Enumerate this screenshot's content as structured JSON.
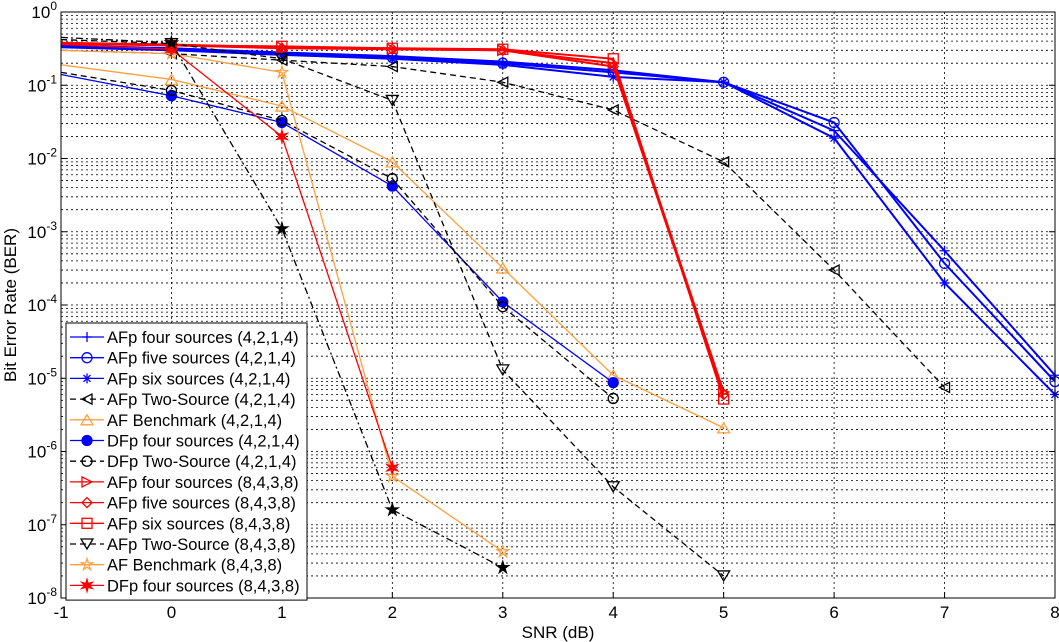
{
  "chart_data": {
    "type": "line",
    "title": "",
    "xlabel": "SNR (dB)",
    "ylabel": "Bit Error Rate (BER)",
    "xlim": [
      -1,
      8
    ],
    "ylim": [
      1e-08,
      1
    ],
    "yscale": "log",
    "grid": true,
    "legend_position": "bottom-left",
    "xticks": [
      "-1",
      "0",
      "1",
      "2",
      "3",
      "4",
      "5",
      "6",
      "7",
      "8"
    ],
    "yticks": [
      {
        "base": "10",
        "exp": "0"
      },
      {
        "base": "10",
        "exp": "-1"
      },
      {
        "base": "10",
        "exp": "-2"
      },
      {
        "base": "10",
        "exp": "-3"
      },
      {
        "base": "10",
        "exp": "-4"
      },
      {
        "base": "10",
        "exp": "-5"
      },
      {
        "base": "10",
        "exp": "-6"
      },
      {
        "base": "10",
        "exp": "-7"
      },
      {
        "base": "10",
        "exp": "-8"
      }
    ],
    "series": [
      {
        "name": "AFp four sources (4,2,1,4)",
        "color": "#0000ff",
        "style": "solid",
        "marker": "plus",
        "x": [
          -1,
          0,
          1,
          2,
          3,
          4,
          5,
          6,
          7,
          8
        ],
        "y": [
          0.35,
          0.32,
          0.28,
          0.25,
          0.21,
          0.16,
          0.11,
          0.024,
          0.00055,
          1.1e-05
        ]
      },
      {
        "name": "AFp five sources (4,2,1,4)",
        "color": "#0000ff",
        "style": "solid",
        "marker": "circle",
        "x": [
          -1,
          0,
          1,
          2,
          3,
          4,
          5,
          6,
          7,
          8
        ],
        "y": [
          0.34,
          0.31,
          0.27,
          0.24,
          0.2,
          0.15,
          0.11,
          0.031,
          0.00037,
          9e-06
        ]
      },
      {
        "name": "AFp six sources (4,2,1,4)",
        "color": "#0000ff",
        "style": "solid",
        "marker": "asterisk",
        "x": [
          -1,
          0,
          1,
          2,
          3,
          4,
          5,
          6,
          7,
          8
        ],
        "y": [
          0.33,
          0.3,
          0.26,
          0.23,
          0.19,
          0.13,
          0.11,
          0.019,
          0.0002,
          6e-06
        ]
      },
      {
        "name": "AFp Two-Source (4,2,1,4)",
        "color": "#000000",
        "style": "dashed",
        "marker": "triangle-left",
        "x": [
          -1,
          0,
          1,
          2,
          3,
          4,
          5,
          6,
          7
        ],
        "y": [
          0.3,
          0.27,
          0.22,
          0.18,
          0.11,
          0.046,
          0.009,
          0.0003,
          7.5e-06
        ]
      },
      {
        "name": "AF Benchmark (4,2,1,4)",
        "color": "#ffa040",
        "style": "solid",
        "marker": "triangle-up",
        "x": [
          -1,
          0,
          1,
          2,
          3,
          4,
          5
        ],
        "y": [
          0.19,
          0.12,
          0.052,
          0.009,
          0.00032,
          1.1e-05,
          2.1e-06
        ]
      },
      {
        "name": "DFp four sources (4,2,1,4)",
        "color": "#0000ff",
        "style": "solid",
        "marker": "filled-circle",
        "x": [
          -1,
          0,
          1,
          2,
          3,
          4
        ],
        "y": [
          0.14,
          0.072,
          0.031,
          0.0042,
          0.00011,
          8.7e-06
        ]
      },
      {
        "name": "DFp Two-Source (4,2,1,4)",
        "color": "#000000",
        "style": "dashed",
        "marker": "circle",
        "x": [
          -1,
          0,
          1,
          2,
          3,
          4
        ],
        "y": [
          0.15,
          0.085,
          0.033,
          0.0053,
          9.5e-05,
          5.3e-06
        ]
      },
      {
        "name": "AFp four sources (8,4,3,8)",
        "color": "#ff0000",
        "style": "solid",
        "marker": "triangle-right",
        "x": [
          -1,
          0,
          1,
          2,
          3,
          4,
          5
        ],
        "y": [
          0.38,
          0.36,
          0.33,
          0.31,
          0.3,
          0.2,
          6.5e-06
        ]
      },
      {
        "name": "AFp five sources (8,4,3,8)",
        "color": "#ff0000",
        "style": "solid",
        "marker": "diamond",
        "x": [
          -1,
          0,
          1,
          2,
          3,
          4,
          5
        ],
        "y": [
          0.37,
          0.35,
          0.32,
          0.31,
          0.3,
          0.18,
          6e-06
        ]
      },
      {
        "name": "AFp six sources (8,4,3,8)",
        "color": "#ff0000",
        "style": "solid",
        "marker": "square",
        "x": [
          -1,
          0,
          1,
          2,
          3,
          4,
          5
        ],
        "y": [
          0.37,
          0.35,
          0.34,
          0.32,
          0.31,
          0.23,
          5.2e-06
        ]
      },
      {
        "name": "AFp Two-Source (8,4,3,8)",
        "color": "#000000",
        "style": "dashed",
        "marker": "triangle-down",
        "x": [
          -1,
          0,
          1,
          2,
          3,
          4,
          5
        ],
        "y": [
          0.42,
          0.37,
          0.23,
          0.062,
          1.3e-05,
          3.3e-07,
          2e-08
        ]
      },
      {
        "name": "AF Benchmark (8,4,3,8)",
        "color": "#ffa040",
        "style": "solid",
        "marker": "pentagram",
        "x": [
          -1,
          0,
          1,
          2,
          3
        ],
        "y": [
          0.3,
          0.27,
          0.15,
          4.6e-07,
          4.3e-08
        ]
      },
      {
        "name": "DFp four sources (8,4,3,8)",
        "color": "#ff0000",
        "style": "solid",
        "marker": "hexagram",
        "x": [
          -1,
          0,
          1,
          2
        ],
        "y": [
          0.36,
          0.31,
          0.02,
          6e-07
        ]
      },
      {
        "color": "#000000",
        "style": "dashdot",
        "marker": "star-black",
        "x": [
          -1,
          0,
          1,
          2,
          3
        ],
        "y": [
          0.45,
          0.38,
          0.0011,
          1.6e-07,
          2.6e-08
        ]
      }
    ]
  }
}
